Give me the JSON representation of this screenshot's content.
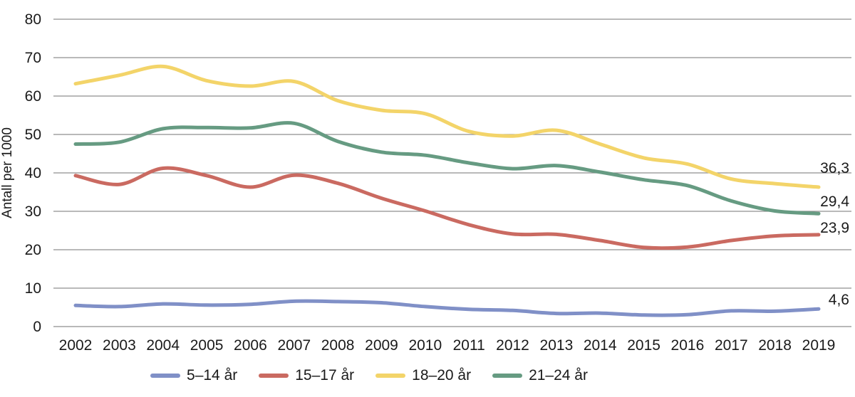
{
  "chart_data": {
    "type": "line",
    "title": "",
    "xlabel": "",
    "ylabel": "Antall per 1000",
    "ylim": [
      0,
      80
    ],
    "ytick_step": 10,
    "yticks": [
      0,
      10,
      20,
      30,
      40,
      50,
      60,
      70,
      80
    ],
    "grid": "horizontal",
    "legend_position": "bottom",
    "x": [
      2002,
      2003,
      2004,
      2005,
      2006,
      2007,
      2008,
      2009,
      2010,
      2011,
      2012,
      2013,
      2014,
      2015,
      2016,
      2017,
      2018,
      2019
    ],
    "series": [
      {
        "name": "5–14 år",
        "color": "#8090c7",
        "end_label": "4,6",
        "values": [
          5.5,
          5.2,
          5.9,
          5.6,
          5.8,
          6.6,
          6.5,
          6.2,
          5.2,
          4.5,
          4.2,
          3.4,
          3.5,
          3.0,
          3.1,
          4.1,
          4.0,
          4.6
        ]
      },
      {
        "name": "15–17 år",
        "color": "#ca6a61",
        "end_label": "23,9",
        "values": [
          39.3,
          37.0,
          41.2,
          39.3,
          36.3,
          39.4,
          37.3,
          33.4,
          30.1,
          26.5,
          24.1,
          24.0,
          22.4,
          20.6,
          20.7,
          22.4,
          23.6,
          23.9
        ]
      },
      {
        "name": "18–20 år",
        "color": "#f3d469",
        "end_label": "36,3",
        "values": [
          63.2,
          65.4,
          67.7,
          64.0,
          62.6,
          63.8,
          58.8,
          56.3,
          55.4,
          50.8,
          49.6,
          51.1,
          47.5,
          43.9,
          42.3,
          38.4,
          37.2,
          36.3
        ]
      },
      {
        "name": "21–24 år",
        "color": "#669b82",
        "end_label": "29,4",
        "values": [
          47.5,
          48.0,
          51.5,
          51.8,
          51.7,
          52.9,
          48.2,
          45.4,
          44.6,
          42.6,
          41.1,
          41.9,
          40.2,
          38.2,
          36.7,
          32.7,
          30.1,
          29.4
        ]
      }
    ]
  },
  "colors": {
    "grid": "#8f8f8f",
    "text": "#1a1a1a",
    "background": "#ffffff"
  }
}
